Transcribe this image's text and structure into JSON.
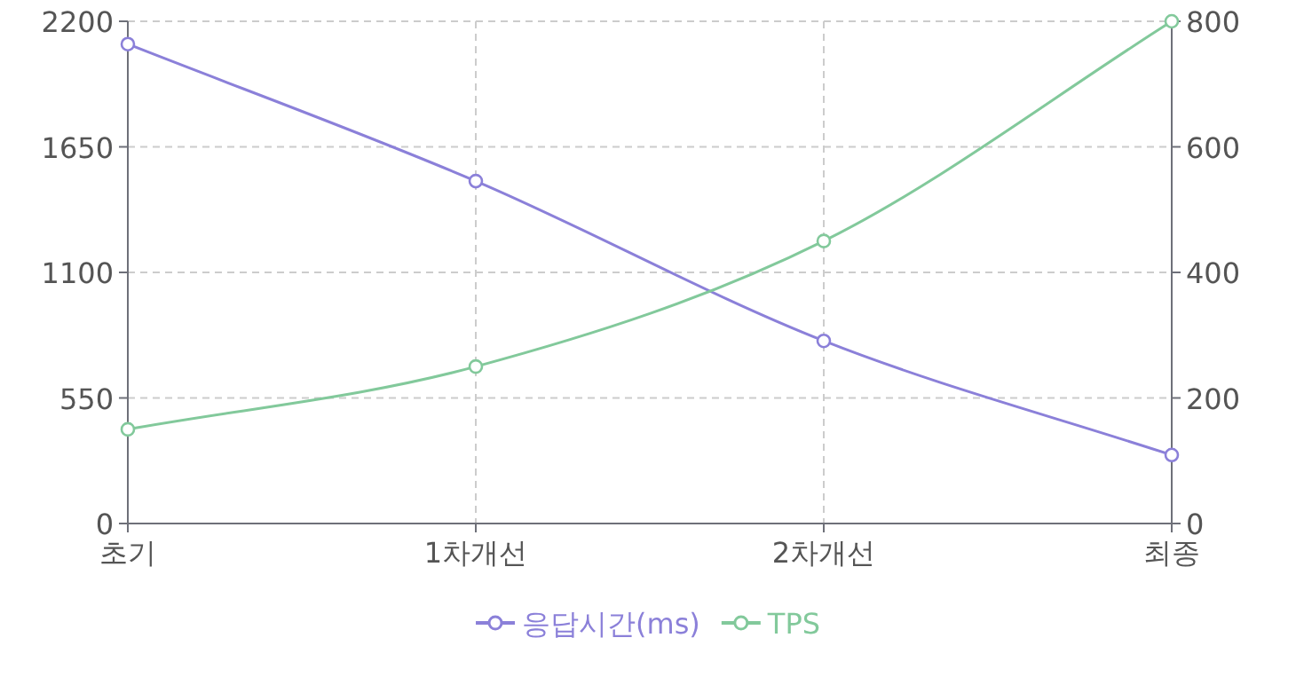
{
  "chart_data": {
    "type": "line",
    "categories": [
      "초기",
      "1차개선",
      "2차개선",
      "최종"
    ],
    "series": [
      {
        "name": "응답시간(ms)",
        "color": "#8b80d9",
        "values": [
          2100,
          1500,
          800,
          300
        ]
      },
      {
        "name": "TPS",
        "color": "#82c99b",
        "values": [
          150,
          250,
          450,
          800
        ],
        "axis": "y2"
      }
    ],
    "ylim": [
      0,
      2200
    ],
    "yticks": [
      0,
      550,
      1100,
      1650,
      2200
    ],
    "y2lim": [
      0,
      800
    ],
    "y2ticks": [
      0,
      200,
      400,
      600,
      800
    ],
    "grid": true,
    "legend": "bottom",
    "marker": "circle"
  }
}
